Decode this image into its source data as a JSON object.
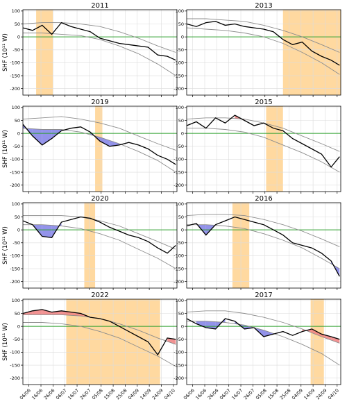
{
  "figure": {
    "ylabel": "SHF (10¹¹ W)",
    "x_tick_labels": [
      "06/06",
      "16/06",
      "26/06",
      "06/07",
      "16/07",
      "26/07",
      "05/08",
      "15/08",
      "25/08",
      "04/09",
      "14/09",
      "24/09",
      "04/10"
    ]
  },
  "colors": {
    "obs_line": "#000000",
    "envelope": "#8c8c8c",
    "zero_line": "#2ca02c",
    "above_fill": "#f08080",
    "below_fill": "#8080e6",
    "heatwave_span": "#ffd9a0",
    "grid": "#dcdcdc"
  },
  "chart_data": [
    {
      "type": "line",
      "title": "2011",
      "x_unit": "day of year",
      "x_range": [
        152,
        280
      ],
      "ylim": [
        -225,
        105
      ],
      "yticks": [
        100,
        50,
        0,
        -50,
        -100,
        -150,
        -200
      ],
      "ylabel": "SHF (10¹¹ W)",
      "grid": true,
      "highlight_span": [
        163,
        177
      ],
      "reference_line": 0,
      "series": [
        {
          "role": "observed",
          "x": [
            152,
            160,
            168,
            176,
            184,
            192,
            200,
            208,
            216,
            224,
            232,
            240,
            248,
            256,
            264,
            272,
            279
          ],
          "y": [
            35,
            25,
            45,
            10,
            55,
            40,
            30,
            20,
            -5,
            -15,
            -25,
            -30,
            -35,
            -40,
            -70,
            -75,
            -90
          ]
        },
        {
          "role": "climatology-upper",
          "x": [
            152,
            168,
            184,
            200,
            216,
            232,
            248,
            264,
            279
          ],
          "y": [
            50,
            55,
            55,
            50,
            40,
            20,
            -5,
            -35,
            -60
          ]
        },
        {
          "role": "climatology-lower",
          "x": [
            152,
            168,
            184,
            200,
            216,
            232,
            248,
            264,
            279
          ],
          "y": [
            15,
            15,
            10,
            5,
            -10,
            -35,
            -65,
            -105,
            -150
          ]
        }
      ]
    },
    {
      "type": "line",
      "title": "2013",
      "x_unit": "day of year",
      "x_range": [
        152,
        280
      ],
      "ylim": [
        -225,
        105
      ],
      "yticks": [
        100,
        50,
        0,
        -50,
        -100,
        -150,
        -200
      ],
      "ylabel": "",
      "grid": true,
      "highlight_span": [
        232,
        280
      ],
      "reference_line": 0,
      "series": [
        {
          "role": "observed",
          "x": [
            152,
            160,
            168,
            176,
            184,
            192,
            200,
            208,
            216,
            224,
            232,
            240,
            248,
            256,
            264,
            272,
            279
          ],
          "y": [
            50,
            40,
            55,
            60,
            45,
            50,
            40,
            35,
            30,
            20,
            -10,
            -30,
            -20,
            -55,
            -75,
            -90,
            -110
          ]
        },
        {
          "role": "climatology-upper",
          "x": [
            152,
            168,
            184,
            200,
            216,
            232,
            248,
            264,
            279
          ],
          "y": [
            70,
            70,
            65,
            60,
            45,
            25,
            0,
            -30,
            -60
          ]
        },
        {
          "role": "climatology-lower",
          "x": [
            152,
            168,
            184,
            200,
            216,
            232,
            248,
            264,
            279
          ],
          "y": [
            35,
            30,
            25,
            15,
            0,
            -25,
            -60,
            -100,
            -145
          ]
        }
      ]
    },
    {
      "type": "line",
      "title": "2019",
      "x_unit": "day of year",
      "x_range": [
        152,
        280
      ],
      "ylim": [
        -225,
        105
      ],
      "yticks": [
        100,
        50,
        0,
        -50,
        -100,
        -150,
        -200
      ],
      "ylabel": "SHF (10¹¹ W)",
      "grid": true,
      "highlight_span": [
        212,
        218
      ],
      "reference_line": 0,
      "series": [
        {
          "role": "observed",
          "x": [
            152,
            160,
            168,
            176,
            184,
            192,
            200,
            208,
            216,
            224,
            232,
            240,
            248,
            256,
            264,
            272,
            279
          ],
          "y": [
            35,
            -10,
            -45,
            -20,
            10,
            20,
            25,
            5,
            -30,
            -50,
            -45,
            -35,
            -45,
            -60,
            -85,
            -100,
            -120
          ]
        },
        {
          "role": "climatology-upper",
          "x": [
            152,
            168,
            184,
            200,
            216,
            232,
            248,
            264,
            279
          ],
          "y": [
            55,
            60,
            65,
            55,
            40,
            20,
            -10,
            -40,
            -65
          ]
        },
        {
          "role": "climatology-lower",
          "x": [
            152,
            168,
            184,
            200,
            216,
            232,
            248,
            264,
            279
          ],
          "y": [
            20,
            15,
            15,
            5,
            -15,
            -40,
            -70,
            -105,
            -150
          ]
        }
      ]
    },
    {
      "type": "line",
      "title": "2015",
      "x_unit": "day of year",
      "x_range": [
        152,
        280
      ],
      "ylim": [
        -225,
        105
      ],
      "yticks": [
        100,
        50,
        0,
        -50,
        -100,
        -150,
        -200
      ],
      "ylabel": "",
      "grid": true,
      "highlight_span": [
        218,
        232
      ],
      "reference_line": 0,
      "series": [
        {
          "role": "observed",
          "x": [
            152,
            160,
            168,
            176,
            184,
            192,
            200,
            208,
            216,
            224,
            232,
            240,
            248,
            256,
            264,
            272,
            279
          ],
          "y": [
            30,
            45,
            20,
            60,
            40,
            70,
            50,
            30,
            40,
            20,
            10,
            -20,
            -40,
            -60,
            -80,
            -130,
            -90
          ]
        },
        {
          "role": "climatology-upper",
          "x": [
            152,
            168,
            184,
            200,
            216,
            232,
            248,
            264,
            279
          ],
          "y": [
            55,
            60,
            60,
            55,
            40,
            20,
            -10,
            -40,
            -70
          ]
        },
        {
          "role": "climatology-lower",
          "x": [
            152,
            168,
            184,
            200,
            216,
            232,
            248,
            264,
            279
          ],
          "y": [
            20,
            20,
            15,
            5,
            -15,
            -45,
            -75,
            -110,
            -150
          ]
        }
      ]
    },
    {
      "type": "line",
      "title": "2020",
      "x_unit": "day of year",
      "x_range": [
        152,
        280
      ],
      "ylim": [
        -225,
        105
      ],
      "yticks": [
        100,
        50,
        0,
        -50,
        -100,
        -150,
        -200
      ],
      "ylabel": "SHF (10¹¹ W)",
      "grid": true,
      "highlight_span": [
        203,
        212
      ],
      "reference_line": 0,
      "series": [
        {
          "role": "observed",
          "x": [
            152,
            160,
            168,
            176,
            184,
            192,
            200,
            208,
            216,
            224,
            232,
            240,
            248,
            256,
            264,
            272,
            279
          ],
          "y": [
            35,
            20,
            -25,
            -30,
            30,
            40,
            50,
            45,
            30,
            10,
            -5,
            -20,
            -30,
            -45,
            -70,
            -90,
            -60
          ]
        },
        {
          "role": "climatology-upper",
          "x": [
            152,
            168,
            184,
            200,
            216,
            232,
            248,
            264,
            279
          ],
          "y": [
            55,
            55,
            55,
            50,
            35,
            15,
            -15,
            -45,
            -75
          ]
        },
        {
          "role": "climatology-lower",
          "x": [
            152,
            168,
            184,
            200,
            216,
            232,
            248,
            264,
            279
          ],
          "y": [
            20,
            20,
            15,
            5,
            -15,
            -40,
            -75,
            -110,
            -150
          ]
        }
      ]
    },
    {
      "type": "line",
      "title": "2016",
      "x_unit": "day of year",
      "x_range": [
        152,
        280
      ],
      "ylim": [
        -225,
        105
      ],
      "yticks": [
        100,
        50,
        0,
        -50,
        -100,
        -150,
        -200
      ],
      "ylabel": "",
      "grid": true,
      "highlight_span": [
        190,
        204
      ],
      "reference_line": 0,
      "series": [
        {
          "role": "observed",
          "x": [
            152,
            160,
            168,
            176,
            184,
            192,
            200,
            208,
            216,
            224,
            232,
            240,
            248,
            256,
            264,
            272,
            279
          ],
          "y": [
            15,
            25,
            -20,
            20,
            35,
            50,
            40,
            30,
            20,
            0,
            -20,
            -50,
            -60,
            -70,
            -90,
            -120,
            -180
          ]
        },
        {
          "role": "climatology-upper",
          "x": [
            152,
            168,
            184,
            200,
            216,
            232,
            248,
            264,
            279
          ],
          "y": [
            55,
            60,
            60,
            55,
            40,
            20,
            -5,
            -35,
            -65
          ]
        },
        {
          "role": "climatology-lower",
          "x": [
            152,
            168,
            184,
            200,
            216,
            232,
            248,
            264,
            279
          ],
          "y": [
            20,
            20,
            15,
            5,
            -15,
            -40,
            -70,
            -110,
            -150
          ]
        }
      ]
    },
    {
      "type": "line",
      "title": "2022",
      "x_unit": "day of year",
      "x_range": [
        152,
        280
      ],
      "ylim": [
        -225,
        105
      ],
      "yticks": [
        100,
        50,
        0,
        -50,
        -100,
        -150,
        -200
      ],
      "ylabel": "SHF (10¹¹ W)",
      "grid": true,
      "highlight_span": [
        188,
        266
      ],
      "reference_line": 0,
      "series": [
        {
          "role": "observed",
          "x": [
            152,
            160,
            168,
            176,
            184,
            192,
            200,
            208,
            216,
            224,
            232,
            240,
            248,
            256,
            264,
            272,
            279
          ],
          "y": [
            50,
            60,
            65,
            55,
            60,
            55,
            50,
            35,
            30,
            20,
            0,
            -20,
            -40,
            -60,
            -110,
            -45,
            -50
          ]
        },
        {
          "role": "climatology-upper",
          "x": [
            152,
            168,
            184,
            200,
            216,
            232,
            248,
            264,
            279
          ],
          "y": [
            45,
            45,
            45,
            40,
            30,
            10,
            -15,
            -45,
            -70
          ]
        },
        {
          "role": "climatology-lower",
          "x": [
            152,
            168,
            184,
            200,
            216,
            232,
            248,
            264,
            279
          ],
          "y": [
            15,
            15,
            10,
            0,
            -20,
            -45,
            -80,
            -115,
            -155
          ]
        }
      ]
    },
    {
      "type": "line",
      "title": "2017",
      "x_unit": "day of year",
      "x_range": [
        152,
        280
      ],
      "ylim": [
        -225,
        105
      ],
      "yticks": [
        100,
        50,
        0,
        -50,
        -100,
        -150,
        -200
      ],
      "ylabel": "",
      "grid": true,
      "highlight_span": [
        255,
        266
      ],
      "reference_line": 0,
      "series": [
        {
          "role": "observed",
          "x": [
            152,
            160,
            168,
            176,
            184,
            192,
            200,
            208,
            216,
            224,
            232,
            240,
            248,
            256,
            264,
            272,
            279
          ],
          "y": [
            30,
            10,
            -5,
            -10,
            30,
            20,
            -10,
            -5,
            -40,
            -30,
            -20,
            -35,
            -20,
            -10,
            -30,
            -40,
            -50
          ]
        },
        {
          "role": "climatology-upper",
          "x": [
            152,
            168,
            184,
            200,
            216,
            232,
            248,
            264,
            279
          ],
          "y": [
            55,
            60,
            60,
            50,
            35,
            15,
            -10,
            -40,
            -65
          ]
        },
        {
          "role": "climatology-lower",
          "x": [
            152,
            168,
            184,
            200,
            216,
            232,
            248,
            264,
            279
          ],
          "y": [
            20,
            20,
            15,
            5,
            -15,
            -40,
            -70,
            -105,
            -150
          ]
        }
      ]
    }
  ]
}
